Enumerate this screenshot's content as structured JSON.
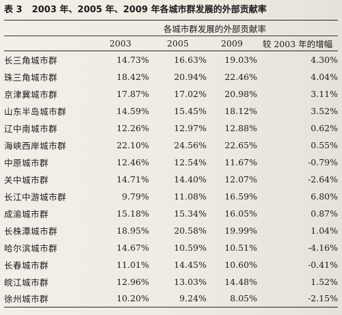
{
  "caption": {
    "number": "表 3",
    "title": "2003 年、2005 年、2009 年各城市群发展的外部贡献率"
  },
  "table": {
    "group_header": "各城市群发展的外部贡献率",
    "columns": [
      "2003",
      "2005",
      "2009",
      "较 2003 年的增幅"
    ],
    "rows": [
      {
        "name": "长三角城市群",
        "v2003": "14.73%",
        "v2005": "16.63%",
        "v2009": "19.03%",
        "change": "4.30%"
      },
      {
        "name": "珠三角城市群",
        "v2003": "18.42%",
        "v2005": "20.94%",
        "v2009": "22.46%",
        "change": "4.04%"
      },
      {
        "name": "京津冀城市群",
        "v2003": "17.87%",
        "v2005": "17.02%",
        "v2009": "20.98%",
        "change": "3.11%"
      },
      {
        "name": "山东半岛城市群",
        "v2003": "14.59%",
        "v2005": "15.45%",
        "v2009": "18.12%",
        "change": "3.52%"
      },
      {
        "name": "辽中南城市群",
        "v2003": "12.26%",
        "v2005": "12.97%",
        "v2009": "12.88%",
        "change": "0.62%"
      },
      {
        "name": "海峡西岸城市群",
        "v2003": "22.10%",
        "v2005": "24.56%",
        "v2009": "22.65%",
        "change": "0.55%"
      },
      {
        "name": "中原城市群",
        "v2003": "12.46%",
        "v2005": "12.54%",
        "v2009": "11.67%",
        "change": "-0.79%"
      },
      {
        "name": "关中城市群",
        "v2003": "14.71%",
        "v2005": "14.40%",
        "v2009": "12.07%",
        "change": "-2.64%"
      },
      {
        "name": "长江中游城市群",
        "v2003": "9.79%",
        "v2005": "11.08%",
        "v2009": "16.59%",
        "change": "6.80%"
      },
      {
        "name": "成渝城市群",
        "v2003": "15.18%",
        "v2005": "15.34%",
        "v2009": "16.05%",
        "change": "0.87%"
      },
      {
        "name": "长株潭城市群",
        "v2003": "18.95%",
        "v2005": "20.58%",
        "v2009": "19.99%",
        "change": "1.04%"
      },
      {
        "name": "哈尔滨城市群",
        "v2003": "14.67%",
        "v2005": "10.59%",
        "v2009": "10.51%",
        "change": "-4.16%"
      },
      {
        "name": "长春城市群",
        "v2003": "11.01%",
        "v2005": "14.45%",
        "v2009": "10.60%",
        "change": "-0.41%"
      },
      {
        "name": "皖江城市群",
        "v2003": "12.96%",
        "v2005": "13.03%",
        "v2009": "14.48%",
        "change": "1.52%"
      },
      {
        "name": "徐州城市群",
        "v2003": "10.20%",
        "v2005": "9.24%",
        "v2009": "8.05%",
        "change": "-2.15%"
      }
    ]
  }
}
